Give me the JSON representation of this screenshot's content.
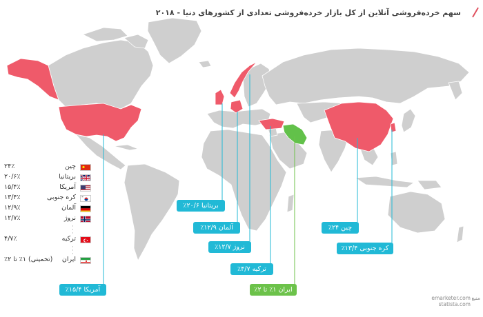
{
  "title": "سهم خرده‌فروشی آنلاین از کل بازار خرده‌فروشی تعدادی از کشورهای دنیا - ۲۰۱۸",
  "colors": {
    "highlight": "#ef5a6a",
    "iran": "#62c14a",
    "land": "#cfcfcf",
    "callout": "#21b9d6",
    "callout_iran": "#6cc24a"
  },
  "legend": [
    {
      "country": "چین",
      "value": "۲۴٪",
      "flag": "china-flag-icon"
    },
    {
      "country": "بریتانیا",
      "value": "۲۰/۶٪",
      "flag": "uk-flag-icon"
    },
    {
      "country": "آمریکا",
      "value": "۱۵/۴٪",
      "flag": "usa-flag-icon"
    },
    {
      "country": "کره جنوبی",
      "value": "۱۳/۴٪",
      "flag": "south-korea-flag-icon"
    },
    {
      "country": "آلمان",
      "value": "۱۲/۹٪",
      "flag": "germany-flag-icon"
    },
    {
      "country": "نروژ",
      "value": "۱۲/۷٪",
      "flag": "norway-flag-icon"
    },
    {
      "country": "ترکیه",
      "value": "۴/۷٪",
      "flag": "turkey-flag-icon"
    },
    {
      "country": "ایران",
      "value": "(تخمینی) ۱٪ تا ۲٪",
      "flag": "iran-flag-icon"
    }
  ],
  "callouts": {
    "uk": "بریتانیا ۲۰/۶٪",
    "germany": "آلمان ۱۲/۹٪",
    "norway": "نروژ ۱۲/۷٪",
    "turkey": "ترکیه ۴/۷٪",
    "iran": "ایران ۱٪ تا ۲٪",
    "usa": "آمریکا ۱۵/۴٪",
    "china": "چین ۲۴٪",
    "korea": "کره جنوبی ۱۳/۴٪"
  },
  "source": {
    "label": "منبع",
    "lines": [
      "emarketer.com",
      "statista.com"
    ]
  }
}
